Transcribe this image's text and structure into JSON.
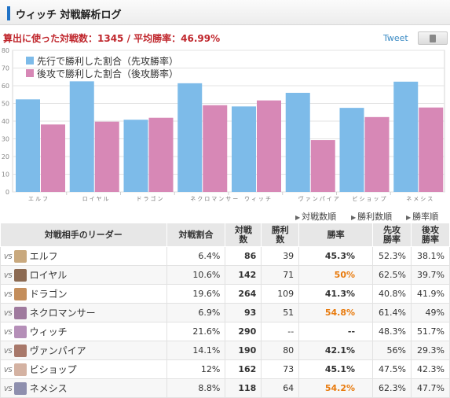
{
  "header": {
    "title": "ウィッチ 対戦解析ログ"
  },
  "summary": {
    "text": "算出に使った対戦数：1345 / 平均勝率：46.99%"
  },
  "share": {
    "tweet_label": "Tweet"
  },
  "chart_data": {
    "type": "bar",
    "categories": [
      "エルフ",
      "ロイヤル",
      "ドラゴン",
      "ネクロマンサー",
      "ウィッチ",
      "ヴァンパイア",
      "ビショップ",
      "ネメシス"
    ],
    "series": [
      {
        "name": "先行で勝利した割合（先攻勝率）",
        "color": "#7dbbe9",
        "values": [
          52.3,
          62.5,
          40.8,
          61.4,
          48.3,
          56,
          47.5,
          62.3
        ]
      },
      {
        "name": "後攻で勝利した割合（後攻勝率）",
        "color": "#d788b6",
        "values": [
          38.1,
          39.7,
          41.9,
          49,
          51.7,
          29.3,
          42.3,
          47.7
        ]
      }
    ],
    "y_ticks": [
      0,
      10,
      20,
      30,
      40,
      50,
      60,
      70,
      80
    ],
    "ylim": [
      0,
      80
    ],
    "grid": true,
    "legend_position": "top-left"
  },
  "sort": {
    "items": [
      "対戦数順",
      "勝利数順",
      "勝率順"
    ]
  },
  "table": {
    "headers": {
      "leader": "対戦相手のリーダー",
      "share": "対戦割合",
      "matches": "対戦数",
      "wins": "勝利数",
      "winrate": "勝率",
      "first": "先攻勝率",
      "second": "後攻勝率"
    },
    "vs_label": "VS",
    "rows": [
      {
        "name": "エルフ",
        "share": "6.4%",
        "matches": "86",
        "wins": "39",
        "winrate": "45.3%",
        "first": "52.3%",
        "second": "38.1%",
        "hot": false,
        "avatar": "#c9a97e"
      },
      {
        "name": "ロイヤル",
        "share": "10.6%",
        "matches": "142",
        "wins": "71",
        "winrate": "50%",
        "first": "62.5%",
        "second": "39.7%",
        "hot": true,
        "avatar": "#8c6a52"
      },
      {
        "name": "ドラゴン",
        "share": "19.6%",
        "matches": "264",
        "wins": "109",
        "winrate": "41.3%",
        "first": "40.8%",
        "second": "41.9%",
        "hot": false,
        "avatar": "#c48e5c"
      },
      {
        "name": "ネクロマンサー",
        "share": "6.9%",
        "matches": "93",
        "wins": "51",
        "winrate": "54.8%",
        "first": "61.4%",
        "second": "49%",
        "hot": true,
        "avatar": "#9f7a9e"
      },
      {
        "name": "ウィッチ",
        "share": "21.6%",
        "matches": "290",
        "wins": "--",
        "winrate": "--",
        "first": "48.3%",
        "second": "51.7%",
        "hot": false,
        "avatar": "#b58fb8"
      },
      {
        "name": "ヴァンパイア",
        "share": "14.1%",
        "matches": "190",
        "wins": "80",
        "winrate": "42.1%",
        "first": "56%",
        "second": "29.3%",
        "hot": false,
        "avatar": "#a8786a"
      },
      {
        "name": "ビショップ",
        "share": "12%",
        "matches": "162",
        "wins": "73",
        "winrate": "45.1%",
        "first": "47.5%",
        "second": "42.3%",
        "hot": false,
        "avatar": "#d4b2a2"
      },
      {
        "name": "ネメシス",
        "share": "8.8%",
        "matches": "118",
        "wins": "64",
        "winrate": "54.2%",
        "first": "62.3%",
        "second": "47.7%",
        "hot": true,
        "avatar": "#8e8fae"
      }
    ]
  }
}
